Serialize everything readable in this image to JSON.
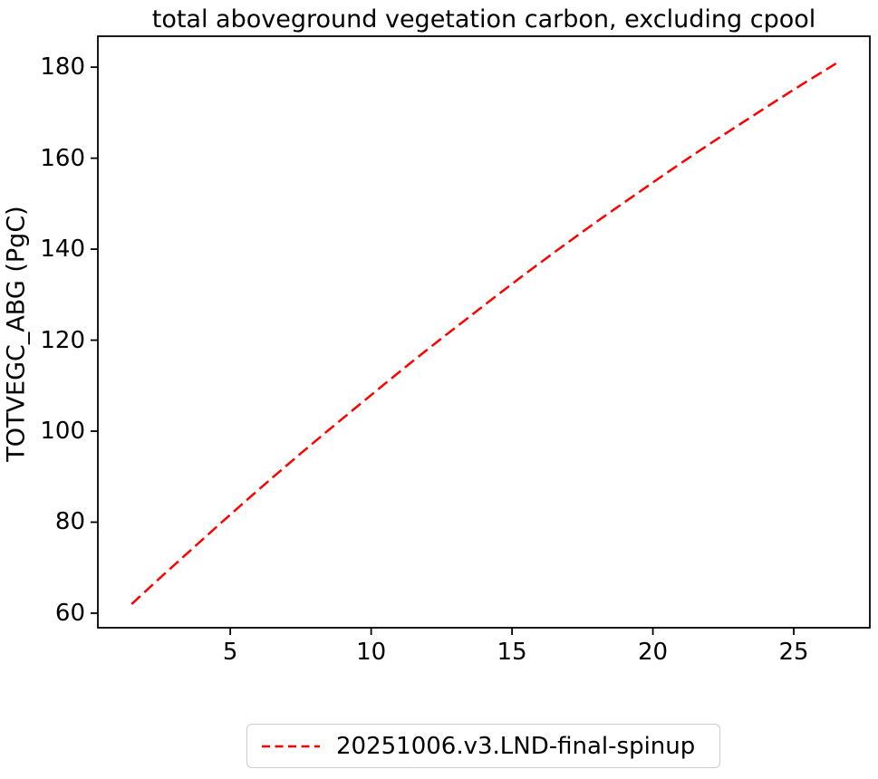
{
  "chart_data": {
    "type": "line",
    "title": "total aboveground vegetation carbon, excluding cpool",
    "xlabel": "",
    "ylabel": "TOTVEGC_ABG (PgC)",
    "xlim": [
      0.3,
      27.7
    ],
    "ylim": [
      56.8,
      186.8
    ],
    "xticks": [
      5,
      10,
      15,
      20,
      25
    ],
    "yticks": [
      60,
      80,
      100,
      120,
      140,
      160,
      180
    ],
    "grid": false,
    "legend_position": "below-chart-center",
    "series": [
      {
        "name": "20251006.v3.LND-final-spinup",
        "color": "#ff0000",
        "linestyle": "dashed",
        "linewidth": 2.5,
        "x": [
          1.5,
          2.5,
          3.5,
          4.5,
          5.5,
          6.5,
          7.5,
          8.5,
          9.5,
          10.5,
          11.5,
          12.5,
          13.5,
          14.5,
          15.5,
          16.5,
          17.5,
          18.5,
          19.5,
          20.5,
          21.5,
          22.5,
          23.5,
          24.5,
          25.5,
          26.5
        ],
        "y": [
          62.0,
          67.7,
          73.3,
          78.9,
          84.4,
          89.8,
          95.1,
          100.3,
          105.4,
          110.5,
          115.5,
          120.4,
          125.2,
          130.0,
          134.7,
          139.3,
          143.8,
          148.2,
          152.5,
          156.8,
          161.0,
          165.1,
          169.1,
          173.1,
          177.0,
          180.8
        ]
      }
    ],
    "axis_color": "#000000",
    "background_color": "#ffffff"
  },
  "legend": {
    "entries": [
      {
        "label": "20251006.v3.LND-final-spinup",
        "marker": "red-dashed-line"
      }
    ]
  }
}
